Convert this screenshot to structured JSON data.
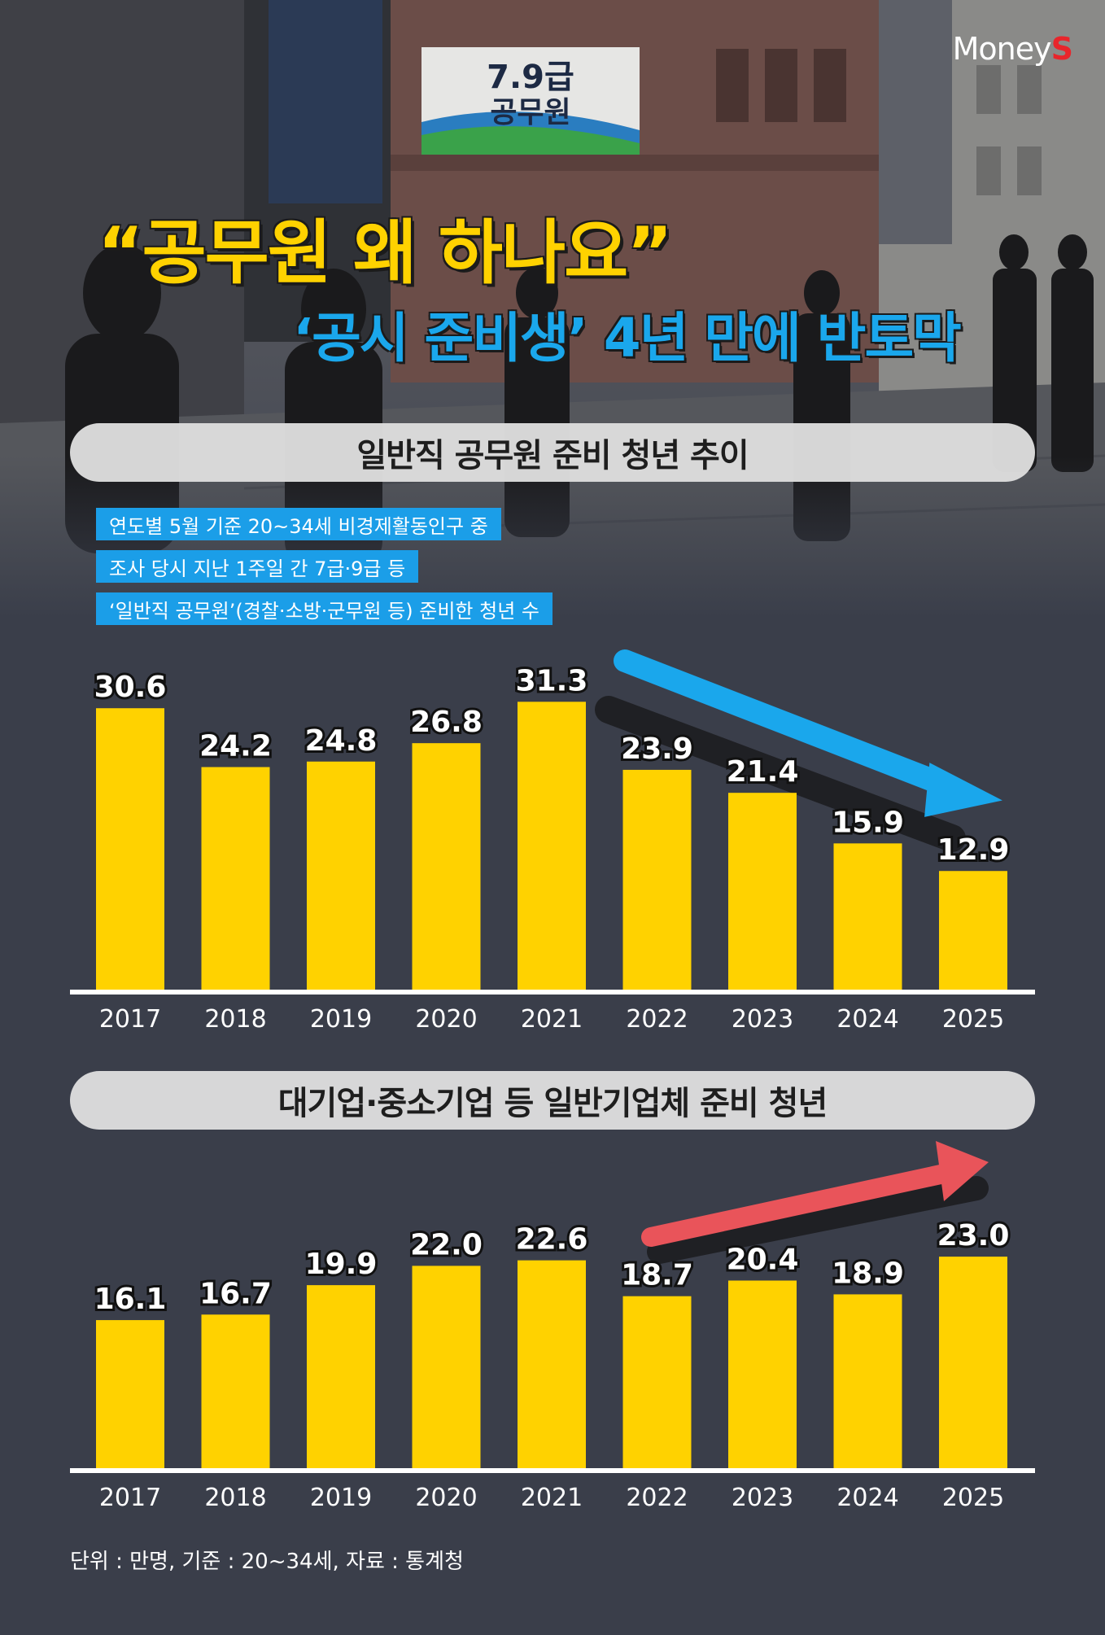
{
  "logo": {
    "prefix": "Money",
    "suffix": "S"
  },
  "headline": "“공무원 왜 하나요”",
  "subheadline": "‘공시 준비생’ 4년 만에 반토막",
  "background_signs": {
    "sign1": "7.9급\n공무원"
  },
  "notes": [
    "연도별 5월 기준 20~34세 비경제활동인구 중",
    "조사 당시 지난 1주일 간 7급·9급 등",
    "‘일반직 공무원’(경찰·소방·군무원 등) 준비한 청년 수"
  ],
  "footer": "단위 : 만명, 기준 : 20~34세, 자료 : 통계청",
  "colors": {
    "bar": "#ffd200",
    "background": "#3a3e4a",
    "down_arrow": "#1aa7ec",
    "up_arrow": "#e9545a",
    "note_bg": "#1b9ee8"
  },
  "chart_data": [
    {
      "type": "bar",
      "title": "일반직 공무원 준비 청년 추이",
      "categories": [
        "2017",
        "2018",
        "2019",
        "2020",
        "2021",
        "2022",
        "2023",
        "2024",
        "2025"
      ],
      "values": [
        30.6,
        24.2,
        24.8,
        26.8,
        31.3,
        23.9,
        21.4,
        15.9,
        12.9
      ],
      "trend_arrow": "down",
      "ylim": [
        0,
        35
      ]
    },
    {
      "type": "bar",
      "title": "대기업·중소기업 등 일반기업체 준비 청년",
      "categories": [
        "2017",
        "2018",
        "2019",
        "2020",
        "2021",
        "2022",
        "2023",
        "2024",
        "2025"
      ],
      "values": [
        16.1,
        16.7,
        19.9,
        22.0,
        22.6,
        18.7,
        20.4,
        18.9,
        23.0
      ],
      "trend_arrow": "up",
      "ylim": [
        0,
        35
      ]
    }
  ]
}
